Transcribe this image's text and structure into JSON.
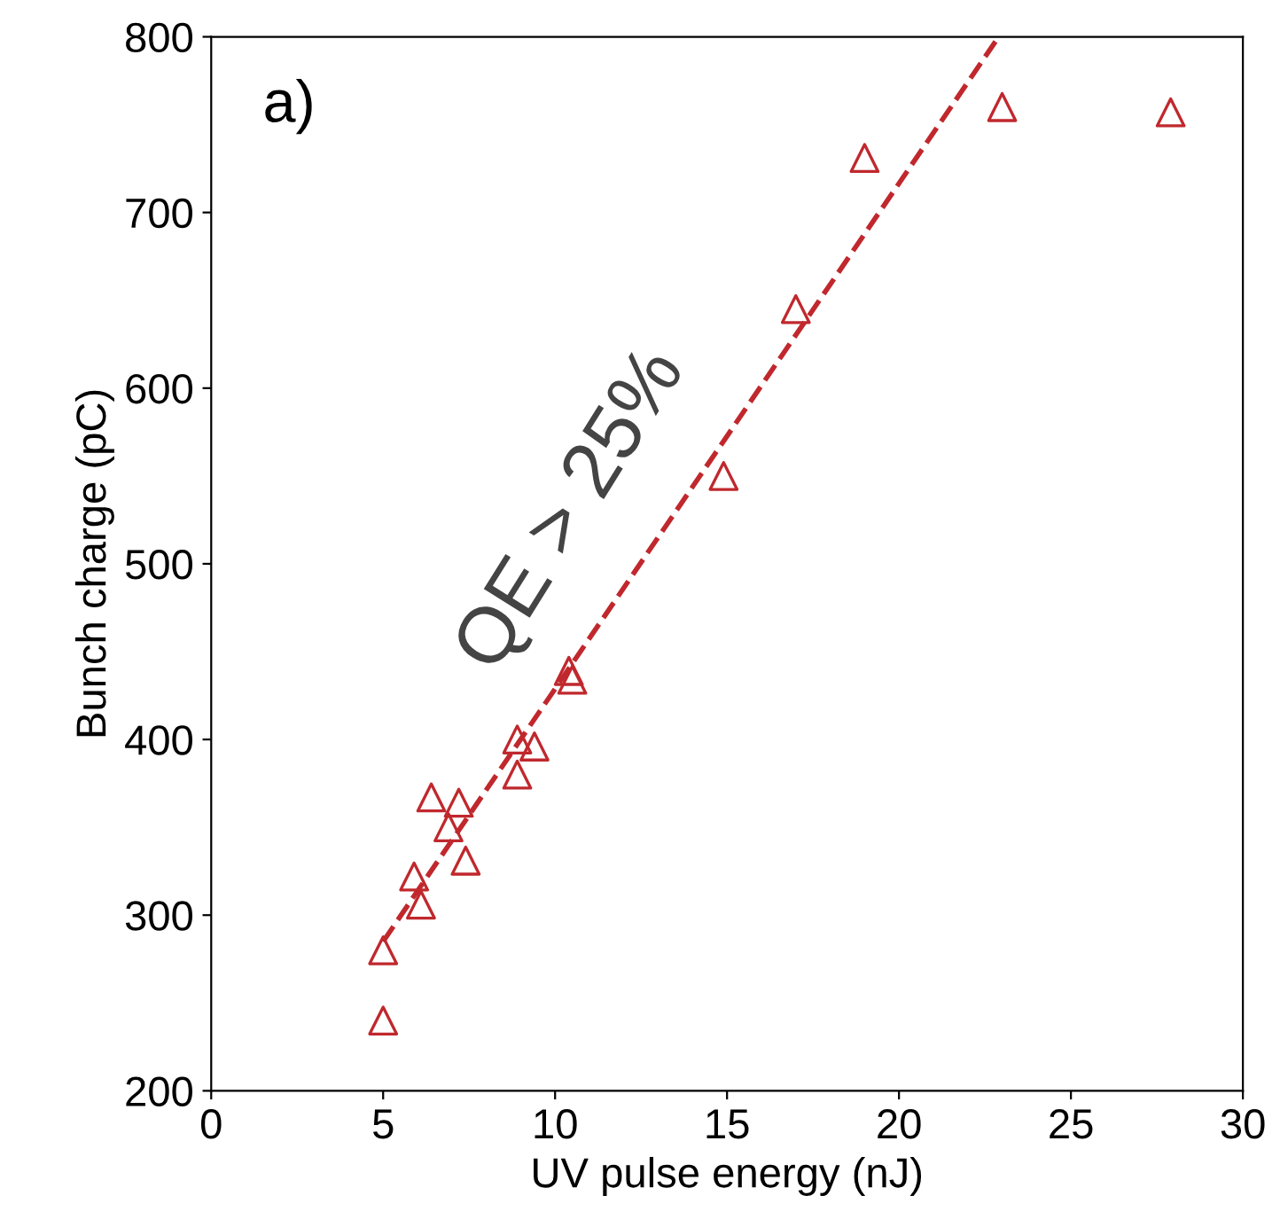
{
  "chart_data": {
    "type": "scatter",
    "xlabel": "UV pulse energy (nJ)",
    "ylabel": "Bunch charge (pC)",
    "annotations": [
      "a)",
      "QE > 25%"
    ],
    "xlim": [
      0,
      30
    ],
    "xticks": [
      0,
      5,
      10,
      15,
      20,
      25,
      30
    ],
    "ylim": [
      200,
      800
    ],
    "yticks": [
      200,
      300,
      400,
      500,
      600,
      700,
      800
    ],
    "grid": false,
    "legend": false,
    "series": [
      {
        "marker": "triangle",
        "color": "#c0282d",
        "x": [
          5,
          5,
          5.9,
          6.1,
          6.4,
          6.9,
          7.2,
          7.4,
          8.9,
          8.9,
          9.4,
          10.4,
          10.5,
          14.9,
          17,
          19,
          23,
          27.9
        ],
        "values": [
          240,
          280,
          322,
          306,
          367,
          350,
          364,
          331,
          400,
          380,
          396,
          439,
          434,
          550,
          645,
          731,
          760,
          757
        ]
      },
      {
        "type": "line",
        "marker": "none",
        "line_style": "dashed",
        "color": "#c0282d",
        "x": [
          5,
          22.9
        ],
        "values": [
          285,
          800
        ]
      }
    ]
  }
}
